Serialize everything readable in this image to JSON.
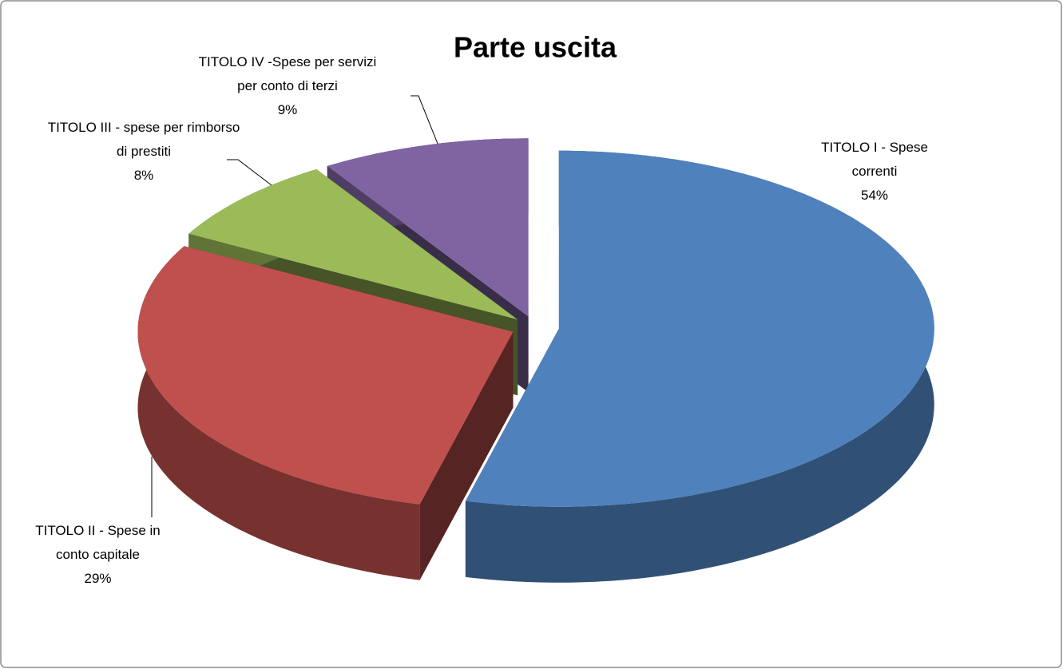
{
  "chart_data": {
    "type": "pie",
    "title": "Parte uscita",
    "categories": [
      "TITOLO I - Spese correnti",
      "TITOLO II - Spese in conto capitale",
      "TITOLO III - spese per rimborso di prestiti",
      "TITOLO IV -Spese per servizi per conto di terzi"
    ],
    "values": [
      54,
      29,
      8,
      9
    ],
    "value_labels": [
      "54%",
      "29%",
      "8%",
      "9%"
    ],
    "colors": [
      "#4f81bd",
      "#c0504d",
      "#9bbb59",
      "#8064a2"
    ]
  }
}
